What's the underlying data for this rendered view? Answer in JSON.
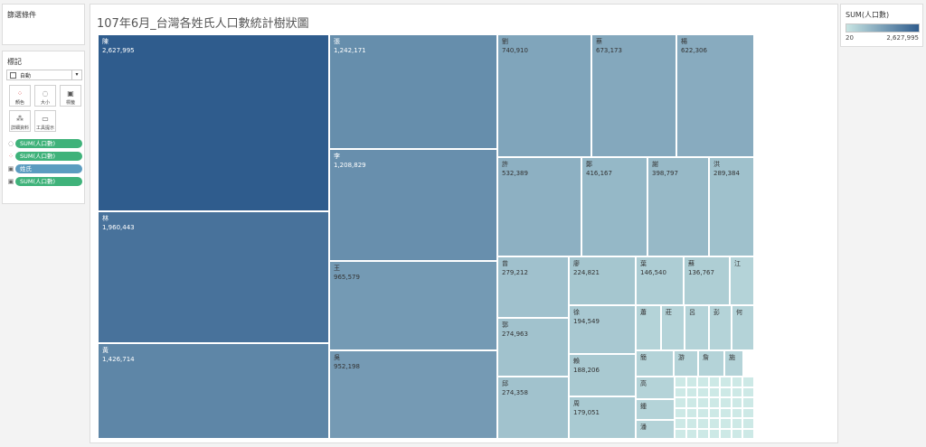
{
  "filters": {
    "title": "篩選條件"
  },
  "marks": {
    "title": "標記",
    "mark_type": "自動",
    "buttons": [
      {
        "label": "顏色",
        "icon": "color-icon"
      },
      {
        "label": "大小",
        "icon": "size-icon"
      },
      {
        "label": "標籤",
        "icon": "label-icon"
      },
      {
        "label": "詳細資料",
        "icon": "detail-icon"
      },
      {
        "label": "工具提示",
        "icon": "tooltip-icon"
      }
    ],
    "pills": [
      {
        "label": "SUM(人口數)",
        "icon": "size-icon",
        "color": "#3fb27a"
      },
      {
        "label": "SUM(人口數)",
        "icon": "color-icon",
        "color": "#3fb27a"
      },
      {
        "label": "姓氏",
        "icon": "label-icon",
        "color": "#5b9cc0"
      },
      {
        "label": "SUM(人口數)",
        "icon": "label-icon",
        "color": "#3fb27a"
      }
    ]
  },
  "viz": {
    "title": "107年6月_台灣各姓氏人口數統計樹狀圖"
  },
  "legend": {
    "title": "SUM(人口數)",
    "min": "20",
    "max": "2,627,995"
  },
  "chart_data": {
    "type": "treemap",
    "title": "107年6月_台灣各姓氏人口數統計樹狀圖",
    "color_field": "SUM(人口數)",
    "size_field": "SUM(人口數)",
    "color_range": [
      20,
      2627995
    ],
    "items": [
      {
        "name": "陳",
        "value": "2,627,995"
      },
      {
        "name": "林",
        "value": "1,960,443"
      },
      {
        "name": "黃",
        "value": "1,426,714"
      },
      {
        "name": "張",
        "value": "1,242,171"
      },
      {
        "name": "李",
        "value": "1,208,829"
      },
      {
        "name": "王",
        "value": "965,579"
      },
      {
        "name": "吳",
        "value": "952,198"
      },
      {
        "name": "劉",
        "value": "740,910"
      },
      {
        "name": "蔡",
        "value": "673,173"
      },
      {
        "name": "楊",
        "value": "622,306"
      },
      {
        "name": "許",
        "value": "532,389"
      },
      {
        "name": "鄭",
        "value": "416,167"
      },
      {
        "name": "謝",
        "value": "398,797"
      },
      {
        "name": "洪",
        "value": "289,384"
      },
      {
        "name": "曾",
        "value": "279,212"
      },
      {
        "name": "郭",
        "value": "274,963"
      },
      {
        "name": "邱",
        "value": "274,358"
      },
      {
        "name": "廖",
        "value": "224,821"
      },
      {
        "name": "徐",
        "value": "194,549"
      },
      {
        "name": "賴",
        "value": "188,206"
      },
      {
        "name": "周",
        "value": "179,051"
      },
      {
        "name": "葉",
        "value": "146,540"
      },
      {
        "name": "蘇",
        "value": "136,767"
      },
      {
        "name": "江",
        "value": ""
      },
      {
        "name": "蕭",
        "value": ""
      },
      {
        "name": "莊",
        "value": ""
      },
      {
        "name": "呂",
        "value": ""
      },
      {
        "name": "彭",
        "value": ""
      },
      {
        "name": "何",
        "value": ""
      },
      {
        "name": "簡",
        "value": ""
      },
      {
        "name": "游",
        "value": ""
      },
      {
        "name": "詹",
        "value": ""
      },
      {
        "name": "施",
        "value": ""
      },
      {
        "name": "高",
        "value": ""
      },
      {
        "name": "鍾",
        "value": ""
      },
      {
        "name": "潘",
        "value": ""
      }
    ]
  }
}
